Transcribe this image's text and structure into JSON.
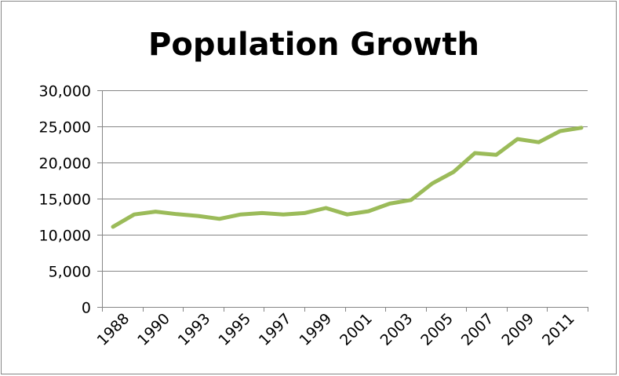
{
  "chart_data": {
    "type": "line",
    "title": "Population Growth",
    "xlabel": "",
    "ylabel": "",
    "x_tick_labels": [
      "1988",
      "1990",
      "1993",
      "1995",
      "1997",
      "1999",
      "2001",
      "2003",
      "2005",
      "2007",
      "2009",
      "2011"
    ],
    "y_tick_labels": [
      "0",
      "5,000",
      "10,000",
      "15,000",
      "20,000",
      "25,000",
      "30,000"
    ],
    "y_ticks": [
      0,
      5000,
      10000,
      15000,
      20000,
      25000,
      30000
    ],
    "ylim": [
      0,
      30000
    ],
    "grid": "horizontal",
    "legend": "none",
    "series": [
      {
        "color": "#9BBB59",
        "points": [
          11100,
          12800,
          13200,
          12850,
          12600,
          12200,
          12800,
          13000,
          12800,
          13000,
          13700,
          12800,
          13250,
          14300,
          14800,
          17100,
          18700,
          21300,
          21050,
          23250,
          22800,
          24350,
          24800
        ]
      }
    ]
  }
}
